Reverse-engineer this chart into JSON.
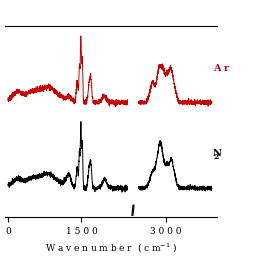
{
  "ar_label": "A r",
  "n2_label": "N 2",
  "ar_color": "#cc0000",
  "n2_color": "#000000",
  "background": "#ffffff",
  "figsize": [
    2.65,
    2.65
  ],
  "dpi": 100
}
